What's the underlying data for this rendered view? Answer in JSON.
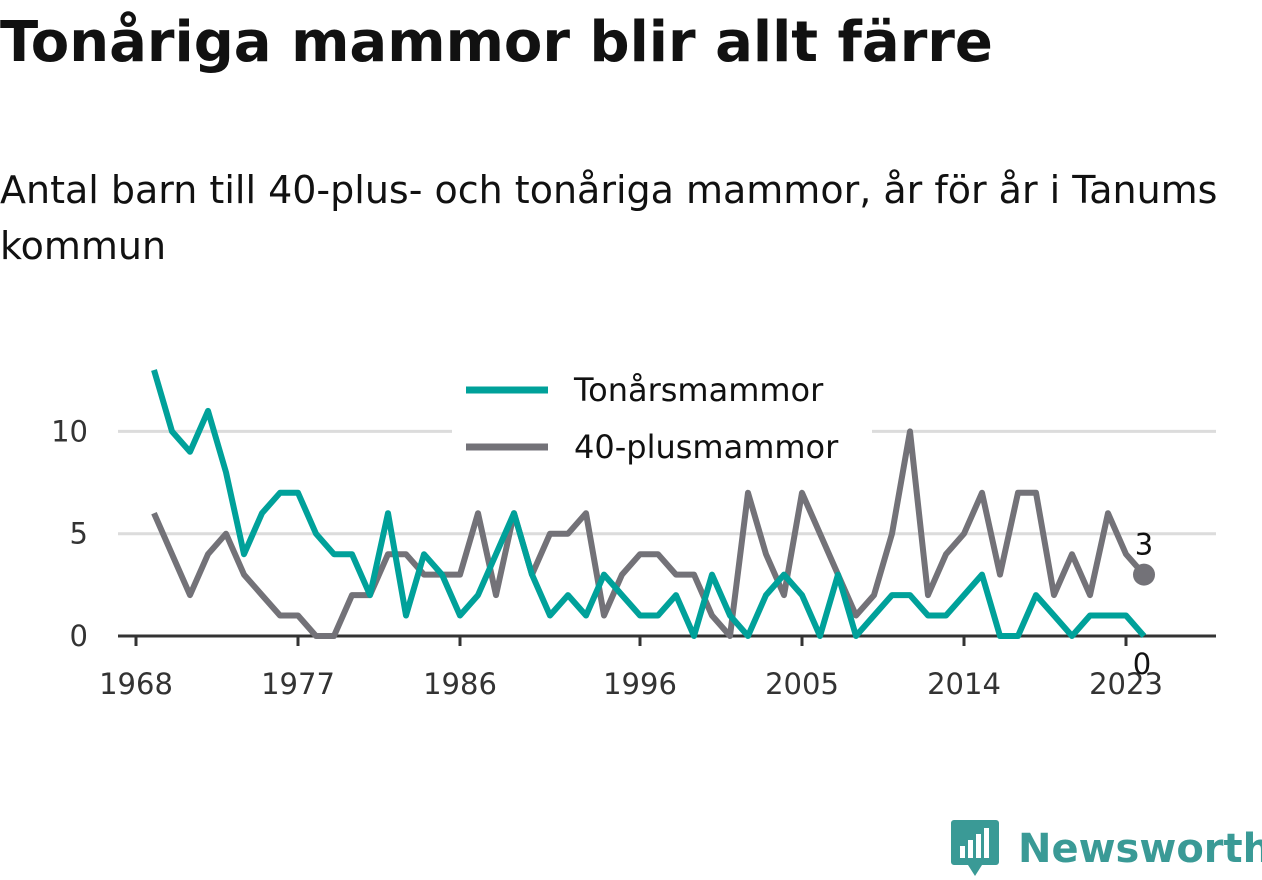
{
  "header": {
    "title": "Tonåriga mammor blir allt färre",
    "subtitle": "Antal barn till 40-plus- och tonåriga mammor, år för år i Tanums kommun"
  },
  "brand": {
    "name": "Newsworthy",
    "icon": "bar-chart-badge-icon",
    "color": "#3a9a96"
  },
  "chart_data": {
    "type": "line",
    "title": "Tonåriga mammor blir allt färre",
    "subtitle": "Antal barn till 40-plus- och tonåriga mammor, år för år i Tanums kommun",
    "x": [
      1969,
      1970,
      1971,
      1972,
      1973,
      1974,
      1975,
      1976,
      1977,
      1978,
      1979,
      1980,
      1981,
      1982,
      1983,
      1984,
      1985,
      1986,
      1987,
      1988,
      1989,
      1990,
      1991,
      1992,
      1993,
      1994,
      1995,
      1996,
      1997,
      1998,
      1999,
      2000,
      2001,
      2002,
      2003,
      2004,
      2005,
      2006,
      2007,
      2008,
      2009,
      2010,
      2011,
      2012,
      2013,
      2014,
      2015,
      2016,
      2017,
      2018,
      2019,
      2020,
      2021,
      2022,
      2023,
      2024
    ],
    "xticks": [
      1968,
      1977,
      1986,
      1996,
      2005,
      2014,
      2023
    ],
    "yticks": [
      0,
      5,
      10
    ],
    "ylim": [
      0,
      13
    ],
    "xlim": [
      1967,
      2028
    ],
    "grid": true,
    "legend_position": "top-center",
    "series": [
      {
        "name": "Tonårsmammor",
        "color": "#00a19a",
        "values": [
          13,
          10,
          9,
          11,
          8,
          4,
          6,
          7,
          7,
          5,
          4,
          4,
          2,
          6,
          1,
          4,
          3,
          1,
          2,
          4,
          6,
          3,
          1,
          2,
          1,
          3,
          2,
          1,
          1,
          2,
          0,
          3,
          1,
          0,
          2,
          3,
          2,
          0,
          3,
          0,
          1,
          2,
          2,
          1,
          1,
          2,
          3,
          0,
          0,
          2,
          1,
          0,
          1,
          1,
          1,
          0
        ],
        "end_label": "0"
      },
      {
        "name": "40-plusmammor",
        "color": "#737278",
        "values": [
          6,
          4,
          2,
          4,
          5,
          3,
          2,
          1,
          1,
          0,
          0,
          2,
          2,
          4,
          4,
          3,
          3,
          3,
          6,
          2,
          6,
          3,
          5,
          5,
          6,
          1,
          3,
          4,
          4,
          3,
          3,
          1,
          0,
          7,
          4,
          2,
          7,
          5,
          3,
          1,
          2,
          5,
          10,
          2,
          4,
          5,
          7,
          3,
          7,
          7,
          2,
          4,
          2,
          6,
          4,
          3
        ],
        "end_label": "3"
      }
    ]
  }
}
